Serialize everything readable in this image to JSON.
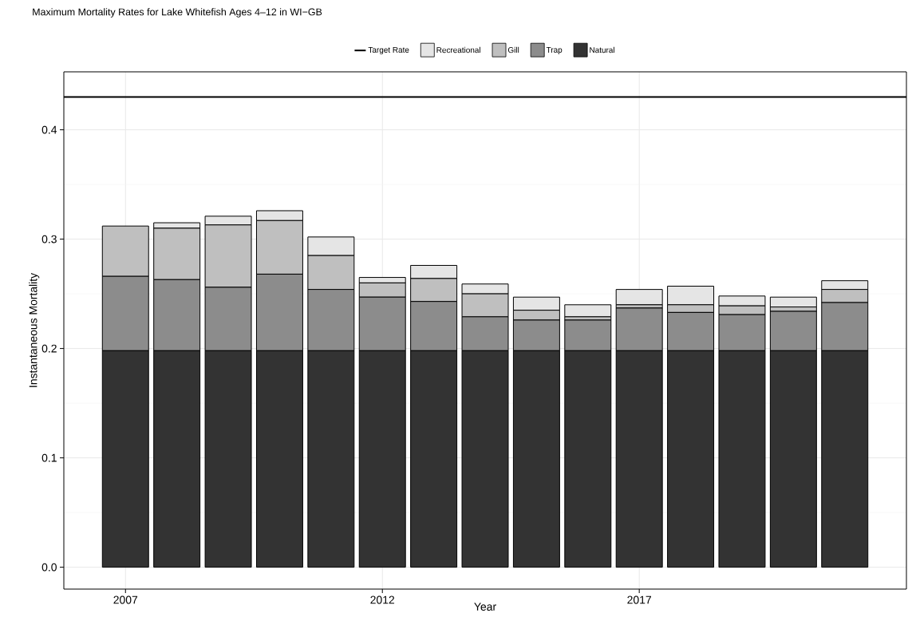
{
  "chart_data": {
    "type": "bar",
    "stacked": true,
    "title": "Maximum Mortality Rates for Lake Whitefish Ages 4‒12 in WI−GB",
    "xlabel": "Year",
    "ylabel": "Instantaneous Mortality",
    "x": [
      2007,
      2008,
      2009,
      2010,
      2011,
      2012,
      2013,
      2014,
      2015,
      2016,
      2017,
      2018,
      2019,
      2020,
      2021
    ],
    "series": [
      {
        "name": "Natural",
        "color": "#333333",
        "values": [
          0.198,
          0.198,
          0.198,
          0.198,
          0.198,
          0.198,
          0.198,
          0.198,
          0.198,
          0.198,
          0.198,
          0.198,
          0.198,
          0.198,
          0.198
        ]
      },
      {
        "name": "Trap",
        "color": "#8c8c8c",
        "values": [
          0.068,
          0.065,
          0.058,
          0.07,
          0.056,
          0.049,
          0.045,
          0.031,
          0.028,
          0.028,
          0.039,
          0.035,
          0.033,
          0.036,
          0.044
        ]
      },
      {
        "name": "Gill",
        "color": "#bfbfbf",
        "values": [
          0.046,
          0.047,
          0.057,
          0.049,
          0.031,
          0.013,
          0.021,
          0.021,
          0.009,
          0.003,
          0.003,
          0.007,
          0.008,
          0.004,
          0.012
        ]
      },
      {
        "name": "Recreational",
        "color": "#e5e5e5",
        "values": [
          0,
          0.005,
          0.008,
          0.009,
          0.017,
          0.005,
          0.012,
          0.009,
          0.012,
          0.011,
          0.014,
          0.017,
          0.009,
          0.009,
          0.008
        ]
      }
    ],
    "ref_lines": [
      {
        "axis": "y",
        "value": 0.43,
        "label": "Target Rate",
        "color": "#000000"
      }
    ],
    "xlim": [
      2005.8,
      2022.2
    ],
    "ylim": [
      -0.02,
      0.453
    ],
    "xticks": [
      2007,
      2012,
      2017
    ],
    "yticks": [
      {
        "value": 0,
        "label": "0.0"
      },
      0.1,
      0.2,
      0.3,
      0.4
    ],
    "grid": true,
    "legend": "top"
  }
}
